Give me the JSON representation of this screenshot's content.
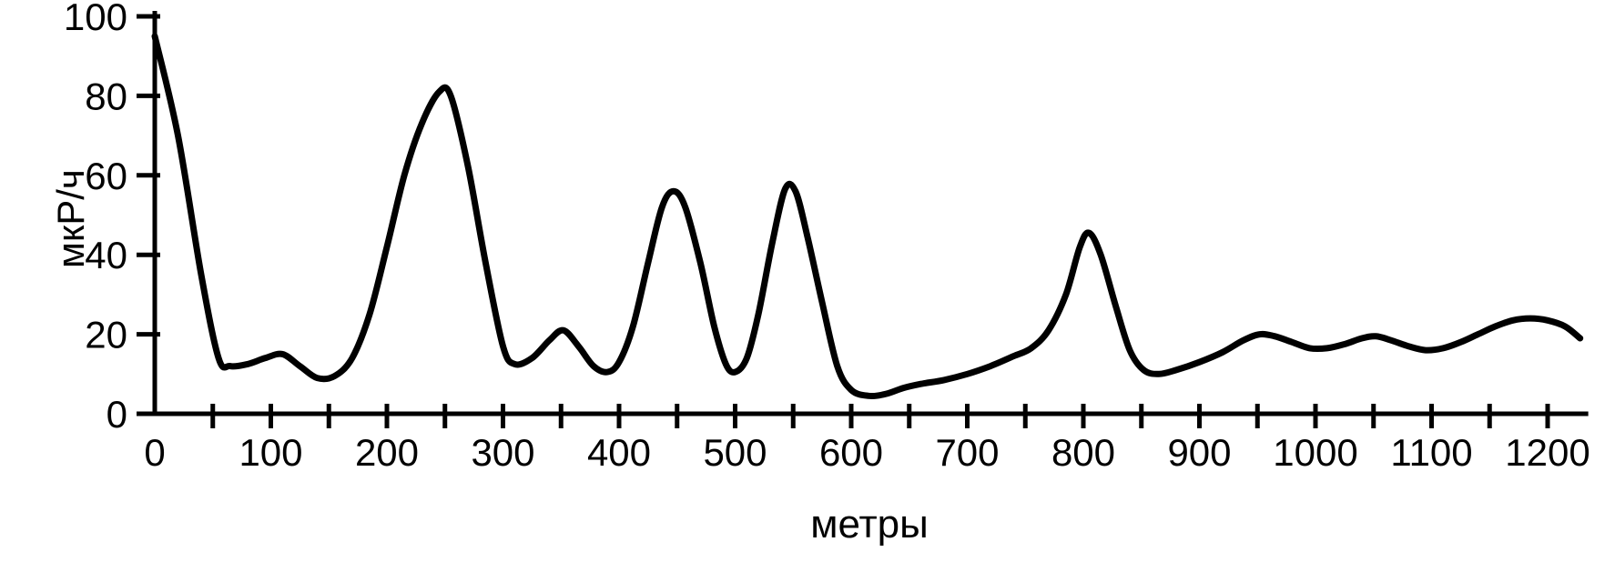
{
  "chart_data": {
    "type": "line",
    "title": "",
    "xlabel": "метры",
    "ylabel": "мкР/ч",
    "xlim": [
      0,
      1235
    ],
    "ylim": [
      0,
      100
    ],
    "x_tick_labels": [
      0,
      100,
      200,
      300,
      400,
      500,
      600,
      700,
      800,
      900,
      1000,
      1100,
      1200
    ],
    "x_minor_tick_step": 50,
    "x_minor_tick_max": 1200,
    "y_ticks": [
      0,
      20,
      40,
      60,
      80,
      100
    ],
    "grid": false,
    "legend": "none",
    "line_color": "#000000",
    "axis_color": "#000000",
    "background_color": "#ffffff",
    "points": [
      [
        0,
        95
      ],
      [
        20,
        70
      ],
      [
        40,
        35
      ],
      [
        55,
        14
      ],
      [
        65,
        12
      ],
      [
        80,
        12.5
      ],
      [
        95,
        14
      ],
      [
        110,
        15
      ],
      [
        125,
        12
      ],
      [
        140,
        9
      ],
      [
        155,
        9.5
      ],
      [
        170,
        14
      ],
      [
        185,
        25
      ],
      [
        200,
        42
      ],
      [
        215,
        60
      ],
      [
        230,
        73
      ],
      [
        245,
        81
      ],
      [
        255,
        80
      ],
      [
        270,
        62
      ],
      [
        285,
        38
      ],
      [
        300,
        17
      ],
      [
        310,
        12.5
      ],
      [
        325,
        14
      ],
      [
        340,
        18.5
      ],
      [
        352,
        21
      ],
      [
        365,
        17
      ],
      [
        378,
        12
      ],
      [
        390,
        10.5
      ],
      [
        400,
        13
      ],
      [
        412,
        22
      ],
      [
        425,
        38
      ],
      [
        437,
        52
      ],
      [
        447,
        56
      ],
      [
        457,
        52
      ],
      [
        470,
        38
      ],
      [
        482,
        22
      ],
      [
        492,
        12.5
      ],
      [
        500,
        10.5
      ],
      [
        510,
        14
      ],
      [
        520,
        25
      ],
      [
        532,
        43
      ],
      [
        543,
        56.5
      ],
      [
        552,
        56
      ],
      [
        562,
        45
      ],
      [
        575,
        28
      ],
      [
        588,
        12
      ],
      [
        600,
        6
      ],
      [
        615,
        4.5
      ],
      [
        630,
        5
      ],
      [
        645,
        6.5
      ],
      [
        660,
        7.5
      ],
      [
        680,
        8.5
      ],
      [
        700,
        10
      ],
      [
        720,
        12
      ],
      [
        740,
        14.5
      ],
      [
        755,
        16.5
      ],
      [
        770,
        21
      ],
      [
        785,
        30
      ],
      [
        797,
        42
      ],
      [
        805,
        45.5
      ],
      [
        815,
        40
      ],
      [
        828,
        27
      ],
      [
        840,
        16
      ],
      [
        852,
        11
      ],
      [
        865,
        10
      ],
      [
        880,
        11
      ],
      [
        900,
        13
      ],
      [
        920,
        15.5
      ],
      [
        938,
        18.5
      ],
      [
        952,
        20
      ],
      [
        965,
        19.5
      ],
      [
        980,
        18
      ],
      [
        995,
        16.5
      ],
      [
        1010,
        16.5
      ],
      [
        1025,
        17.5
      ],
      [
        1040,
        19
      ],
      [
        1052,
        19.5
      ],
      [
        1065,
        18.5
      ],
      [
        1080,
        17
      ],
      [
        1095,
        16
      ],
      [
        1110,
        16.5
      ],
      [
        1125,
        18
      ],
      [
        1140,
        20
      ],
      [
        1155,
        22
      ],
      [
        1170,
        23.5
      ],
      [
        1185,
        24
      ],
      [
        1200,
        23.5
      ],
      [
        1215,
        22
      ],
      [
        1228,
        19
      ]
    ]
  }
}
